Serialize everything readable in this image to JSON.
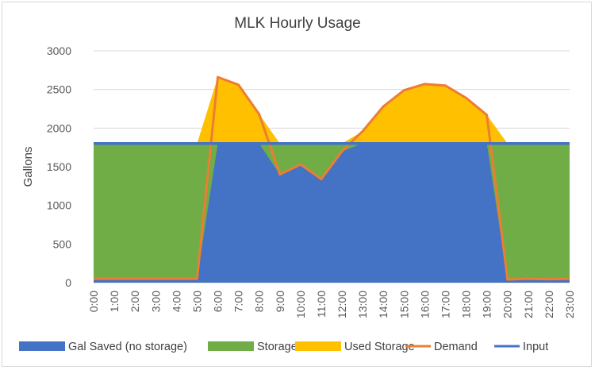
{
  "chart_data": {
    "type": "area",
    "title": "MLK Hourly Usage",
    "xlabel": "",
    "ylabel": "Gallons",
    "ylim": [
      0,
      3000
    ],
    "yticks": [
      0,
      500,
      1000,
      1500,
      2000,
      2500,
      3000
    ],
    "grid": true,
    "legend_position": "bottom",
    "categories": [
      "0:00",
      "1:00",
      "2:00",
      "3:00",
      "4:00",
      "5:00",
      "6:00",
      "7:00",
      "8:00",
      "9:00",
      "10:00",
      "11:00",
      "12:00",
      "13:00",
      "14:00",
      "15:00",
      "16:00",
      "17:00",
      "18:00",
      "19:00",
      "20:00",
      "21:00",
      "22:00",
      "23:00"
    ],
    "series": [
      {
        "name": "Gal Saved (no storage)",
        "kind": "area",
        "color": "#4472c4",
        "values": [
          50,
          50,
          50,
          50,
          50,
          50,
          1800,
          1800,
          1800,
          1400,
          1530,
          1340,
          1700,
          1800,
          1800,
          1800,
          1800,
          1800,
          1800,
          1800,
          40,
          50,
          45,
          50
        ]
      },
      {
        "name": "Storage",
        "kind": "area",
        "color": "#70ad47",
        "values": [
          1800,
          1800,
          1800,
          1800,
          1800,
          1800,
          1800,
          1800,
          1800,
          1800,
          1800,
          1800,
          1800,
          1800,
          1800,
          1800,
          1800,
          1800,
          1800,
          1800,
          1800,
          1800,
          1800,
          1800
        ]
      },
      {
        "name": "Used Storage",
        "kind": "area",
        "color": "#ffc000",
        "values": [
          1800,
          1800,
          1800,
          1800,
          1800,
          1800,
          2660,
          2560,
          2180,
          1800,
          1800,
          1800,
          1800,
          1960,
          2280,
          2490,
          2570,
          2550,
          2390,
          2170,
          1800,
          1800,
          1800,
          1800
        ]
      },
      {
        "name": "Demand",
        "kind": "line",
        "color": "#ed7d31",
        "values": [
          50,
          50,
          50,
          50,
          50,
          50,
          2660,
          2560,
          2180,
          1400,
          1530,
          1340,
          1700,
          1960,
          2280,
          2490,
          2570,
          2550,
          2390,
          2170,
          40,
          50,
          45,
          50
        ]
      },
      {
        "name": "Input",
        "kind": "line",
        "color": "#4472c4",
        "values": [
          1800,
          1800,
          1800,
          1800,
          1800,
          1800,
          1800,
          1800,
          1800,
          1800,
          1800,
          1800,
          1800,
          1800,
          1800,
          1800,
          1800,
          1800,
          1800,
          1800,
          1800,
          1800,
          1800,
          1800
        ]
      }
    ]
  }
}
